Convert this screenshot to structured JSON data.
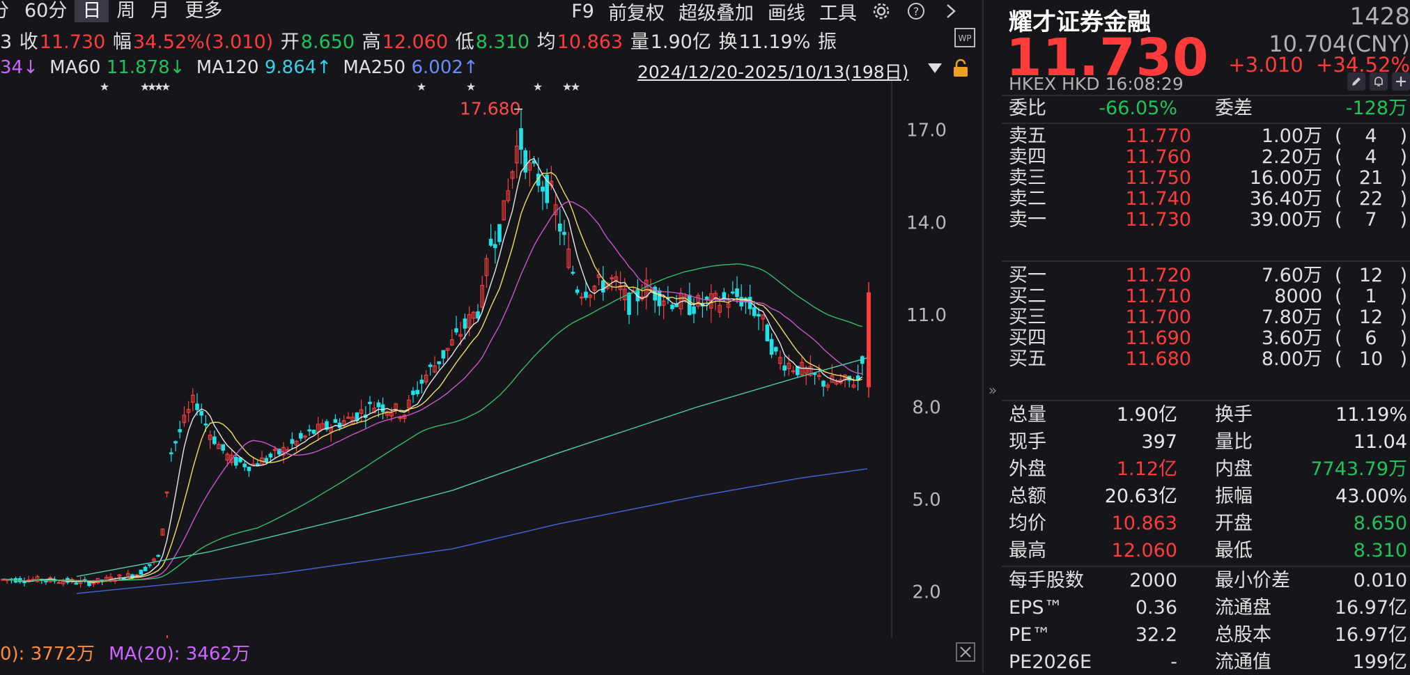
{
  "toolbar": {
    "left": [
      "分",
      "60分",
      "日",
      "周",
      "月",
      "更多"
    ],
    "active": "日",
    "right": [
      "F9",
      "前复权",
      "超级叠加",
      "画线",
      "工具"
    ],
    "icons": [
      "gear-icon",
      "help-icon",
      "chevron-right-icon"
    ]
  },
  "infobar": {
    "prefix": "3",
    "close_label": "收",
    "close": "11.730",
    "amp_label": "幅",
    "amp": "34.52%(3.010)",
    "open_label": "开",
    "open": "8.650",
    "high_label": "高",
    "high": "12.060",
    "low_label": "低",
    "low": "8.310",
    "avg_label": "均",
    "avg": "10.863",
    "vol_label": "量",
    "vol": "1.90亿",
    "turn_label": "换",
    "turn": "11.19%",
    "zhen_label": "振"
  },
  "mabar": {
    "ma20_tail": "34↓",
    "ma60_label": "MA60",
    "ma60": "11.878↓",
    "ma120_label": "MA120",
    "ma120": "9.864↑",
    "ma250_label": "MA250",
    "ma250": "6.002↑",
    "date_range": "2024/12/20-2025/10/13(198日)"
  },
  "chart_data": {
    "type": "candlestick",
    "ylim": [
      0.5,
      18.6
    ],
    "y_ticks": [
      "17.0",
      "14.0",
      "11.0",
      "8.0",
      "5.0",
      "2.0"
    ],
    "high_marker": "17.680",
    "current_price": 11.73,
    "colors": {
      "up": "#ff3b3b",
      "down": "#21e0e8",
      "ma5": "#e8e8e8",
      "ma10": "#f0e060",
      "ma20": "#cc55cc",
      "ma60": "#2fbf6a",
      "ma120": "#4fcfb0",
      "ma250": "#4466dd"
    }
  },
  "volbar": {
    "ma10_label": "0):",
    "ma10": "3772万",
    "ma20_label": "MA(20):",
    "ma20": "3462万"
  },
  "panel": {
    "name": "耀才证券金融",
    "code": "1428",
    "price": "11.730",
    "prev": "10.704(CNY)",
    "change": "+3.010",
    "change_pct": "+34.52%",
    "market": "HKEX  HKD  16:08:29",
    "weibi_label": "委比",
    "weibi": "-66.05%",
    "weicha_label": "委差",
    "weicha": "-128万",
    "asks": [
      {
        "label": "卖五",
        "price": "11.770",
        "vol": "1.00万",
        "n": "4"
      },
      {
        "label": "卖四",
        "price": "11.760",
        "vol": "2.20万",
        "n": "4"
      },
      {
        "label": "卖三",
        "price": "11.750",
        "vol": "16.00万",
        "n": "21"
      },
      {
        "label": "卖二",
        "price": "11.740",
        "vol": "36.40万",
        "n": "22"
      },
      {
        "label": "卖一",
        "price": "11.730",
        "vol": "39.00万",
        "n": "7"
      }
    ],
    "bids": [
      {
        "label": "买一",
        "price": "11.720",
        "vol": "7.60万",
        "n": "12"
      },
      {
        "label": "买二",
        "price": "11.710",
        "vol": "8000",
        "n": "1"
      },
      {
        "label": "买三",
        "price": "11.700",
        "vol": "7.80万",
        "n": "12"
      },
      {
        "label": "买四",
        "price": "11.690",
        "vol": "3.60万",
        "n": "6"
      },
      {
        "label": "买五",
        "price": "11.680",
        "vol": "8.00万",
        "n": "10"
      }
    ],
    "stats": [
      {
        "l1": "总量",
        "v1": "1.90亿",
        "c1": "white",
        "l2": "换手",
        "v2": "11.19%",
        "c2": "white"
      },
      {
        "l1": "现手",
        "v1": "397",
        "c1": "white",
        "l2": "量比",
        "v2": "11.04",
        "c2": "white"
      },
      {
        "l1": "外盘",
        "v1": "1.12亿",
        "c1": "red",
        "l2": "内盘",
        "v2": "7743.79万",
        "c2": "green"
      },
      {
        "l1": "总额",
        "v1": "20.63亿",
        "c1": "white",
        "l2": "振幅",
        "v2": "43.00%",
        "c2": "white"
      },
      {
        "l1": "均价",
        "v1": "10.863",
        "c1": "red",
        "l2": "开盘",
        "v2": "8.650",
        "c2": "green"
      },
      {
        "l1": "最高",
        "v1": "12.060",
        "c1": "red",
        "l2": "最低",
        "v2": "8.310",
        "c2": "green"
      }
    ],
    "stats2": [
      {
        "l1": "每手股数",
        "v1": "2000",
        "l2": "最小价差",
        "v2": "0.010"
      },
      {
        "l1": "EPS™",
        "v1": "0.36",
        "l2": "流通盘",
        "v2": "16.97亿"
      },
      {
        "l1": "PE™",
        "v1": "32.2",
        "l2": "总股本",
        "v2": "16.97亿"
      },
      {
        "l1": "PE2026E",
        "v1": "-",
        "l2": "流通值",
        "v2": "199亿"
      }
    ]
  }
}
